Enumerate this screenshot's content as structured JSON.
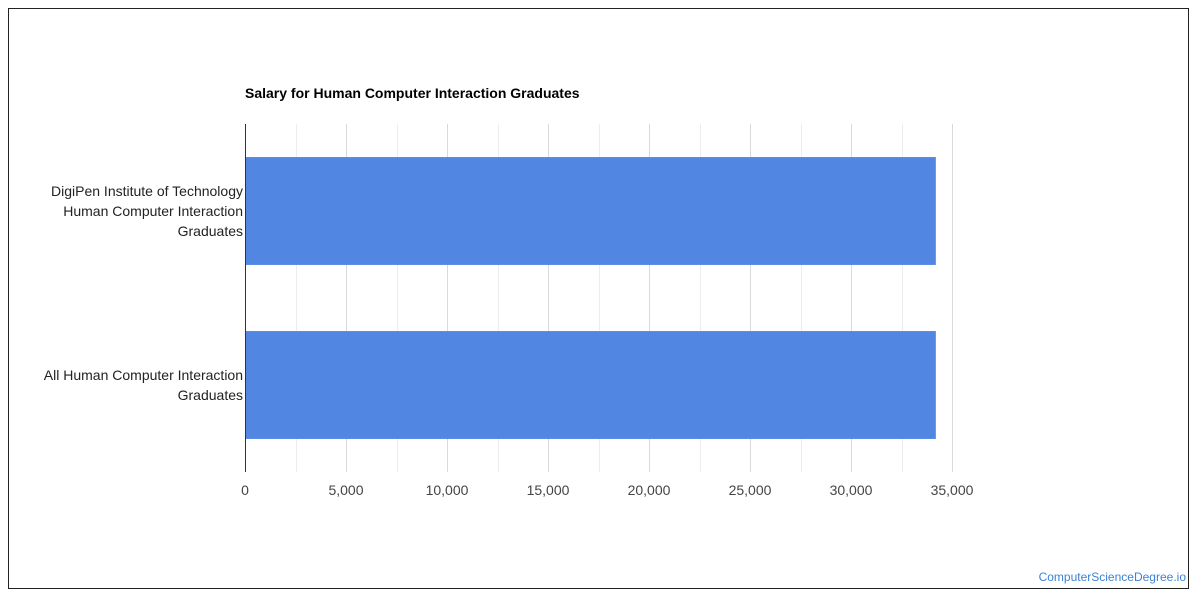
{
  "chart_data": {
    "type": "bar",
    "orientation": "horizontal",
    "title": "Salary for Human Computer Interaction Graduates",
    "categories": [
      "DigiPen Institute of Technology Human Computer Interaction Graduates",
      "All Human Computer Interaction Graduates"
    ],
    "category_lines": [
      [
        "DigiPen Institute of Technology",
        "Human Computer Interaction",
        "Graduates"
      ],
      [
        "All Human Computer Interaction",
        "Graduates"
      ]
    ],
    "values": [
      34200,
      34200
    ],
    "xlim": [
      0,
      35000
    ],
    "x_ticks": [
      "0",
      "5,000",
      "10,000",
      "15,000",
      "20,000",
      "25,000",
      "30,000",
      "35,000"
    ],
    "x_tick_values": [
      0,
      5000,
      10000,
      15000,
      20000,
      25000,
      30000,
      35000
    ],
    "grid": true,
    "legend": "none",
    "bar_color": "#5286e3",
    "grid_color": "#d9d9d9",
    "minor_grid_color": "#ededed"
  },
  "watermark": "ComputerScienceDegree.io"
}
